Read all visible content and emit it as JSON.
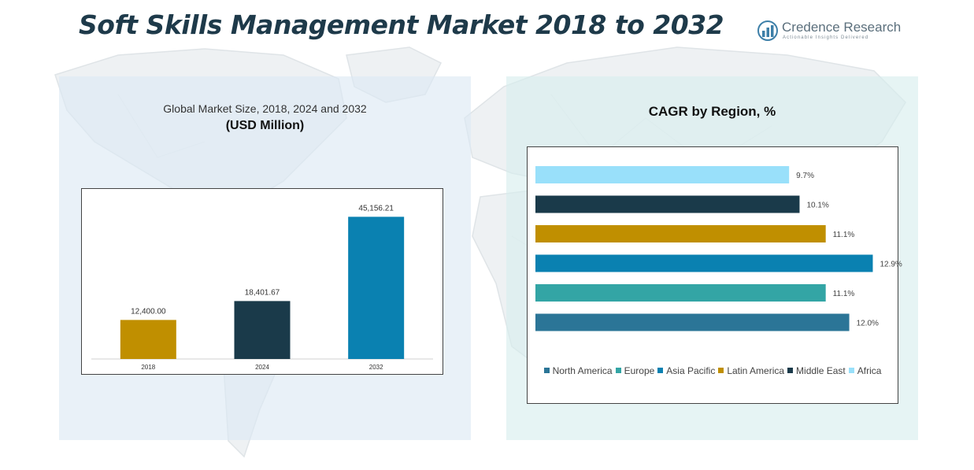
{
  "header": {
    "title": "Soft Skills Management Market 2018 to 2032"
  },
  "logo": {
    "name": "Credence Research",
    "tagline": "Actionable Insights Delivered"
  },
  "left_panel": {
    "title": "Global Market Size, 2018, 2024 and 2032",
    "subtitle": "(USD Million)"
  },
  "right_panel": {
    "title": "CAGR by Region, %"
  },
  "chart_data": [
    {
      "type": "bar",
      "title": "Global Market Size, 2018, 2024 and 2032",
      "subtitle": "(USD Million)",
      "categories": [
        "2018",
        "2024",
        "2032"
      ],
      "values": [
        12400.0,
        18401.67,
        45156.21
      ],
      "labels": [
        "12,400.00",
        "18,401.67",
        "45,156.21"
      ],
      "colors": [
        "#c08f00",
        "#1a3a4a",
        "#0a81b1"
      ],
      "ylim": [
        0,
        50000
      ],
      "grid": false
    },
    {
      "type": "bar",
      "orientation": "horizontal",
      "title": "CAGR by Region, %",
      "categories": [
        "Africa",
        "Middle East",
        "Latin America",
        "Asia Pacific",
        "Europe",
        "North America"
      ],
      "values": [
        9.7,
        10.1,
        11.1,
        12.9,
        11.1,
        12.0
      ],
      "labels": [
        "9.7%",
        "10.1%",
        "11.1%",
        "12.9%",
        "11.1%",
        "12.0%"
      ],
      "colors": [
        "#99e0fa",
        "#1a3a4a",
        "#c08f00",
        "#0a81b1",
        "#33a5a5",
        "#2b7597"
      ],
      "legend": {
        "position": "bottom",
        "entries": [
          {
            "name": "North America",
            "color": "#2b7597"
          },
          {
            "name": "Europe",
            "color": "#33a5a5"
          },
          {
            "name": "Asia Pacific",
            "color": "#0a81b1"
          },
          {
            "name": "Latin America",
            "color": "#c08f00"
          },
          {
            "name": "Middle East",
            "color": "#1a3a4a"
          },
          {
            "name": "Africa",
            "color": "#99e0fa"
          }
        ]
      },
      "xlim": [
        0,
        14
      ],
      "grid": false
    }
  ]
}
